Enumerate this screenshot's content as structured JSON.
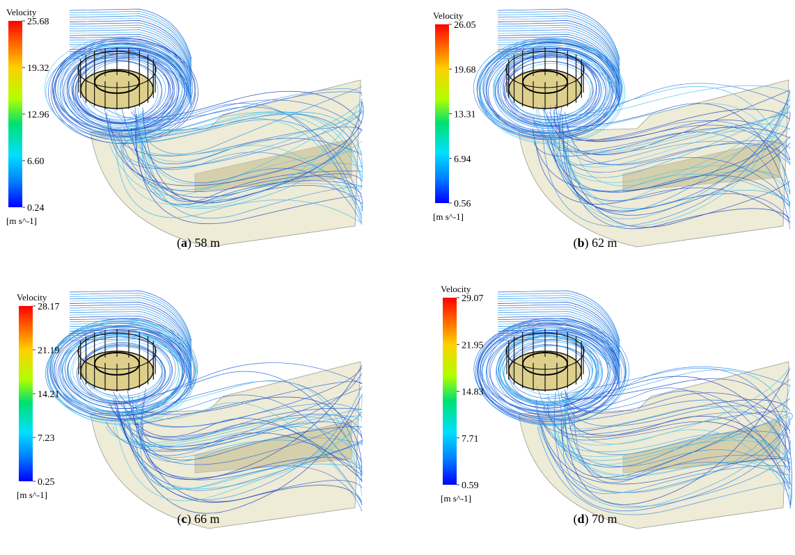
{
  "panels": [
    {
      "legend": {
        "title": "Velocity",
        "ticks": [
          "25.68",
          "19.32",
          "12.96",
          "6.60",
          "0.24"
        ],
        "unit": "[m s^-1]"
      },
      "caption": {
        "open": "(",
        "label": "a",
        "rest": ") 58 m"
      }
    },
    {
      "legend": {
        "title": "Velocity",
        "ticks": [
          "26.05",
          "19.68",
          "13.31",
          "6.94",
          "0.56"
        ],
        "unit": "[m s^-1]"
      },
      "caption": {
        "open": "(",
        "label": "b",
        "rest": ") 62 m"
      }
    },
    {
      "legend": {
        "title": "Velocity",
        "ticks": [
          "28.17",
          "21.19",
          "14.21",
          "7.23",
          "0.25"
        ],
        "unit": "[m s^-1]"
      },
      "caption": {
        "open": "(",
        "label": "c",
        "rest": ") 66 m"
      }
    },
    {
      "legend": {
        "title": "Velocity",
        "ticks": [
          "29.07",
          "21.95",
          "14.83",
          "7.71",
          "0.59"
        ],
        "unit": "[m s^-1]"
      },
      "caption": {
        "open": "(",
        "label": "d",
        "rest": ") 70 m"
      }
    }
  ]
}
